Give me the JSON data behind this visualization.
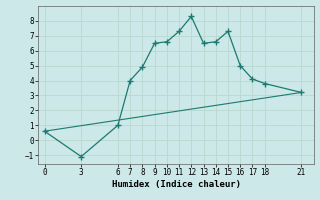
{
  "xlabel": "Humidex (Indice chaleur)",
  "line1_x": [
    0,
    3,
    6,
    7,
    8,
    9,
    10,
    11,
    12,
    13,
    14,
    15,
    16,
    17,
    18,
    21
  ],
  "line1_y": [
    0.6,
    -1.1,
    1.0,
    4.0,
    4.9,
    6.5,
    6.6,
    7.3,
    8.3,
    6.5,
    6.6,
    7.3,
    5.0,
    4.1,
    3.8,
    3.2
  ],
  "line2_x": [
    0,
    21
  ],
  "line2_y": [
    0.6,
    3.2
  ],
  "color": "#1c7a70",
  "bg_color": "#cce8e8",
  "grid_major_color": "#b8d8d0",
  "grid_minor_color": "#d0e8e0",
  "xlim": [
    -0.5,
    22
  ],
  "ylim": [
    -1.6,
    9.0
  ],
  "yticks": [
    -1,
    0,
    1,
    2,
    3,
    4,
    5,
    6,
    7,
    8
  ],
  "xticks": [
    0,
    3,
    6,
    7,
    8,
    9,
    10,
    11,
    12,
    13,
    14,
    15,
    16,
    17,
    18,
    21
  ],
  "tick_fontsize": 5.5,
  "xlabel_fontsize": 6.5
}
